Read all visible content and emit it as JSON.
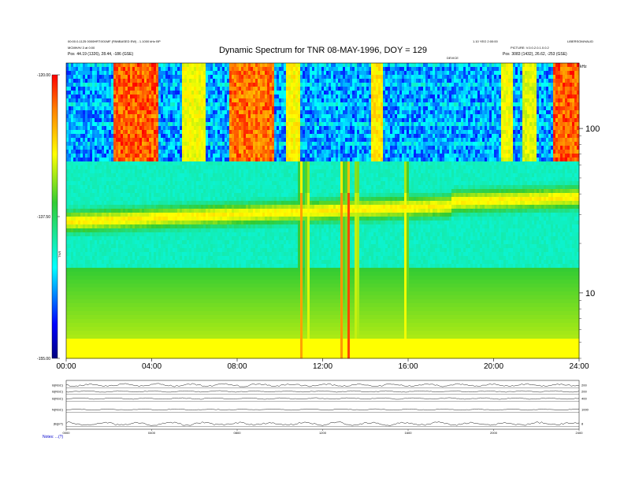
{
  "chart_data": {
    "type": "heatmap",
    "title": "Dynamic Spectrum for TNR 08-MAY-1996, DOY = 129",
    "header": {
      "left_line1": "00:00.0-1125 0000HRT:001MF (PANBASED EW) - 1.1000 kHz BP",
      "left_line2": "MCMH/H/.3 at 0:00",
      "left_pos_label": "Pos",
      "left_pos_value": "44.19 (1326), 28.44, -186 (GSE)",
      "right_line1": "1.10 YEO 2:00:00",
      "right_line2": "PICTURE: V.0.0.2.0.1.0.0.2",
      "right_pos_label": "Pos",
      "right_pos_value": "3083 (1432), 26.62, -253 (GSE)",
      "corner_label": "LIBERSOM/VALID",
      "mid_label": "DEVICE"
    },
    "colorbar": {
      "ticks": [
        "-120.00",
        "-137.50",
        "-155.00"
      ],
      "min": -155.0,
      "max": -120.0,
      "units": "TNR"
    },
    "x_axis": {
      "range_hours": [
        0,
        24
      ],
      "ticks": [
        "00:00",
        "04:00",
        "08:00",
        "12:00",
        "16:00",
        "20:00",
        "24:00"
      ]
    },
    "y_axis_right": {
      "unit": "kHz",
      "scale": "log",
      "range_khz": [
        4,
        250
      ],
      "ticks": [
        {
          "label": "100",
          "value": 100
        },
        {
          "label": "10",
          "value": 10
        }
      ]
    },
    "bands": {
      "quiet_level_dB": -142,
      "band_freq_khz_at_start": 27,
      "band_freq_khz_at_end": 36,
      "upper_cut_freq_khz": 62
    },
    "bursts_upper": [
      {
        "start_h": 2.2,
        "end_h": 4.3,
        "intensity": 1.0
      },
      {
        "start_h": 5.4,
        "end_h": 6.5,
        "intensity": 0.45
      },
      {
        "start_h": 7.6,
        "end_h": 9.7,
        "intensity": 0.95
      },
      {
        "start_h": 10.3,
        "end_h": 10.9,
        "intensity": 0.5
      },
      {
        "start_h": 14.3,
        "end_h": 14.8,
        "intensity": 0.55
      },
      {
        "start_h": 20.4,
        "end_h": 20.9,
        "intensity": 0.45
      },
      {
        "start_h": 21.4,
        "end_h": 22.0,
        "intensity": 0.4
      },
      {
        "start_h": 22.8,
        "end_h": 24.0,
        "intensity": 1.0
      }
    ],
    "spikes": [
      {
        "time_h": 11.0,
        "intensity": 0.7
      },
      {
        "time_h": 11.3,
        "intensity": 0.55
      },
      {
        "time_h": 12.9,
        "intensity": 0.8
      },
      {
        "time_h": 13.2,
        "intensity": 1.0
      },
      {
        "time_h": 13.6,
        "intensity": 0.6
      },
      {
        "time_h": 15.9,
        "intensity": 0.55
      }
    ],
    "line_panels": {
      "left_labels": [
        "B(NSC)",
        "B(NSC)",
        "B(NSC)",
        "N(NSC)",
        "|B|(nT)"
      ],
      "right_labels": [
        "200",
        "200",
        "400",
        "1000",
        "8"
      ],
      "x_ticks": [
        "0000",
        "0400",
        "0800",
        "1200",
        "1600",
        "2000",
        "2400"
      ]
    },
    "footer_label": "Notes: ...(?)"
  }
}
